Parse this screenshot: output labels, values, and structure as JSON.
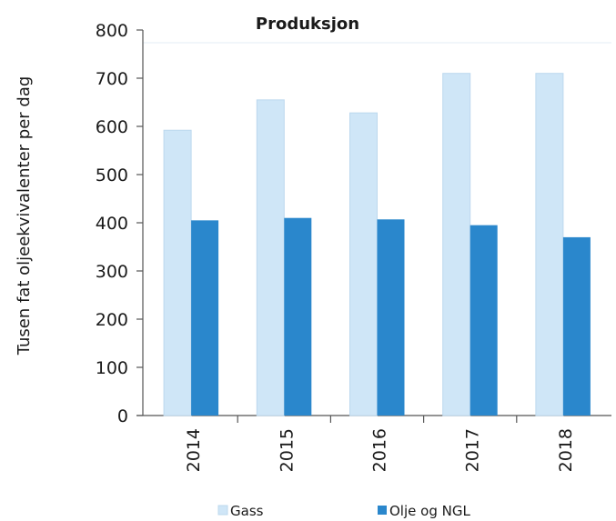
{
  "chart_data": {
    "type": "bar",
    "title": "Produksjon",
    "ylabel": "Tusen fat oljeekvivalenter per dag",
    "xlabel": "",
    "categories": [
      "2014",
      "2015",
      "2016",
      "2017",
      "2018"
    ],
    "series": [
      {
        "name": "Gass",
        "values": [
          592,
          655,
          628,
          710,
          710
        ],
        "color": "#cfe6f7"
      },
      {
        "name": "Olje og NGL",
        "values": [
          405,
          410,
          407,
          395,
          370
        ],
        "color": "#2a87cc"
      }
    ],
    "ylim": [
      0,
      800
    ],
    "yticks": [
      0,
      100,
      200,
      300,
      400,
      500,
      600,
      700,
      800
    ],
    "legend_position": "bottom",
    "grid": false
  }
}
